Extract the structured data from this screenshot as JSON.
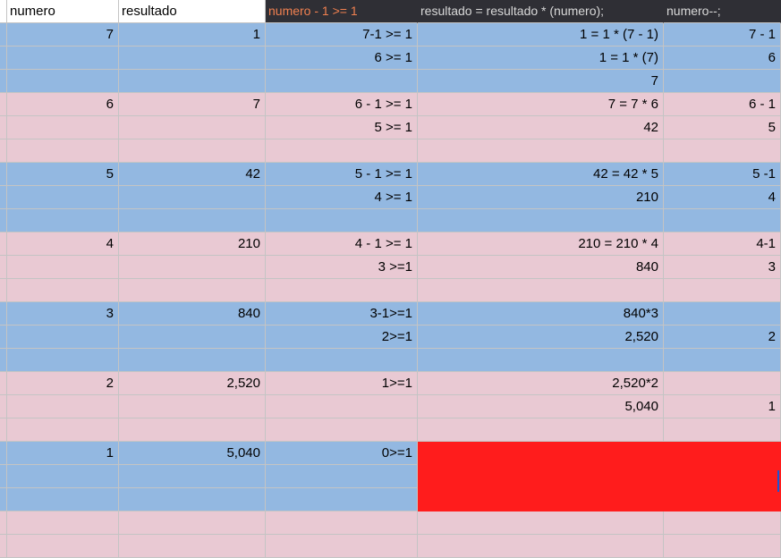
{
  "headers": {
    "col_a": "numero",
    "col_b": "resultado",
    "col_c": "numero - 1 >= 1",
    "col_d": "resultado = resultado * (numero);",
    "col_e": "numero--;"
  },
  "colors": {
    "blue_band": "#93b8e1",
    "pink_band": "#e9c9d3",
    "highlight_red": "#ff1c1c",
    "header_dark": "#2f2f35",
    "header_orange_text": "#f08050"
  },
  "rows": [
    {
      "band": "blue",
      "cells": [
        "7",
        "1",
        "7-1 >= 1",
        "1 = 1 * (7 - 1)",
        "7 - 1"
      ]
    },
    {
      "band": "blue",
      "cells": [
        "",
        "",
        "6 >= 1",
        "1 = 1 * (7)",
        "6"
      ]
    },
    {
      "band": "blue",
      "cells": [
        "",
        "",
        "",
        "7",
        ""
      ]
    },
    {
      "band": "pink",
      "cells": [
        "6",
        "7",
        "6 - 1 >= 1",
        "7 = 7 * 6",
        "6 - 1"
      ]
    },
    {
      "band": "pink",
      "cells": [
        "",
        "",
        "5 >= 1",
        "42",
        "5"
      ]
    },
    {
      "band": "pink",
      "cells": [
        "",
        "",
        "",
        "",
        ""
      ]
    },
    {
      "band": "blue",
      "cells": [
        "5",
        "42",
        "5 - 1 >= 1",
        "42 = 42 * 5",
        "5 -1"
      ]
    },
    {
      "band": "blue",
      "cells": [
        "",
        "",
        "4 >= 1",
        "210",
        "4"
      ]
    },
    {
      "band": "blue",
      "cells": [
        "",
        "",
        "",
        "",
        ""
      ]
    },
    {
      "band": "pink",
      "cells": [
        "4",
        "210",
        "4 - 1 >= 1",
        "210 = 210 * 4",
        "4-1"
      ]
    },
    {
      "band": "pink",
      "cells": [
        "",
        "",
        "3 >=1",
        "840",
        "3"
      ]
    },
    {
      "band": "pink",
      "cells": [
        "",
        "",
        "",
        "",
        ""
      ]
    },
    {
      "band": "blue",
      "cells": [
        "3",
        "840",
        "3-1>=1",
        "840*3",
        ""
      ]
    },
    {
      "band": "blue",
      "cells": [
        "",
        "",
        "2>=1",
        "2,520",
        "2"
      ]
    },
    {
      "band": "blue",
      "cells": [
        "",
        "",
        "",
        "",
        ""
      ]
    },
    {
      "band": "pink",
      "cells": [
        "2",
        "2,520",
        "1>=1",
        "2,520*2",
        ""
      ]
    },
    {
      "band": "pink",
      "cells": [
        "",
        "",
        "",
        "5,040",
        "1"
      ]
    },
    {
      "band": "pink",
      "cells": [
        "",
        "",
        "",
        "",
        ""
      ]
    },
    {
      "band": "blue",
      "cells": [
        "1",
        "5,040",
        "0>=1",
        "",
        ""
      ],
      "red_from": 3
    },
    {
      "band": "blue",
      "cells": [
        "",
        "",
        "",
        "",
        ""
      ],
      "red_from": 3
    },
    {
      "band": "blue",
      "cells": [
        "",
        "",
        "",
        "",
        ""
      ],
      "red_from": 3
    },
    {
      "band": "pink",
      "cells": [
        "",
        "",
        "",
        "",
        ""
      ]
    },
    {
      "band": "pink",
      "cells": [
        "",
        "",
        "",
        "",
        ""
      ]
    }
  ]
}
